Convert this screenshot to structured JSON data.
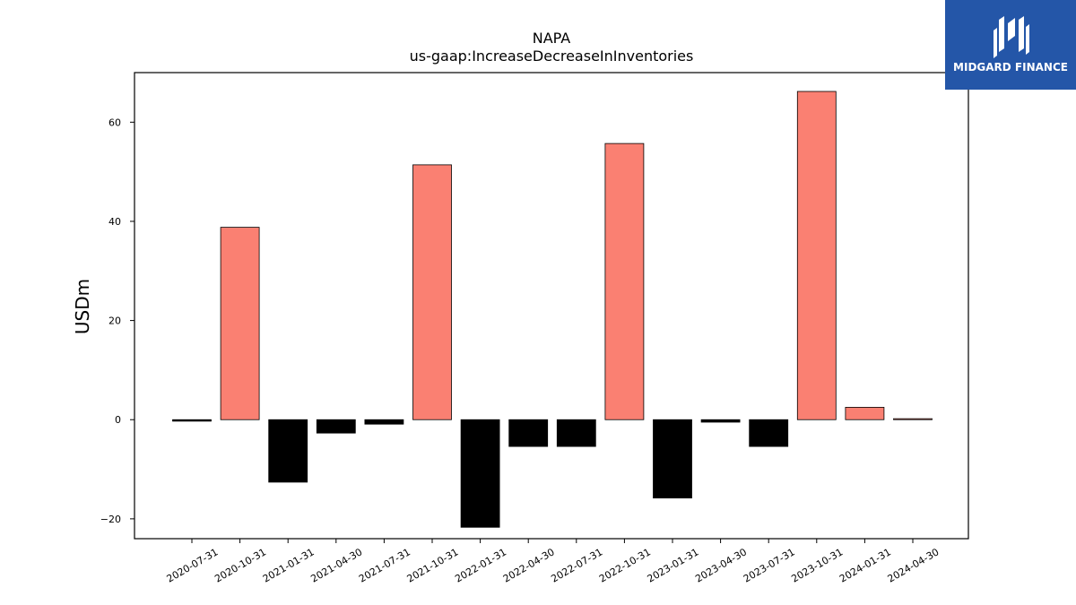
{
  "chart_data": {
    "type": "bar",
    "title": "NAPA",
    "subtitle": "us-gaap:IncreaseDecreaseInInventories",
    "ylabel": "USDm",
    "xlabel": "",
    "ylim": [
      -24,
      70
    ],
    "yticks": [
      -20,
      0,
      20,
      40,
      60
    ],
    "categories": [
      "2020-07-31",
      "2020-10-31",
      "2021-01-31",
      "2021-04-30",
      "2021-07-31",
      "2021-10-31",
      "2022-01-31",
      "2022-04-30",
      "2022-07-31",
      "2022-10-31",
      "2023-01-31",
      "2023-04-30",
      "2023-07-31",
      "2023-10-31",
      "2024-01-31",
      "2024-04-30"
    ],
    "values": [
      -0.3,
      38.8,
      -12.6,
      -2.7,
      -0.9,
      51.4,
      -21.7,
      -5.4,
      -5.4,
      55.7,
      -15.8,
      -0.5,
      -5.4,
      66.2,
      2.5,
      0.2
    ],
    "colors": {
      "positive": "#fa8072",
      "negative": "#000000",
      "edge": "#000000"
    }
  },
  "logo": {
    "text": "MIDGARD FINANCE",
    "background": "#2456a8"
  }
}
